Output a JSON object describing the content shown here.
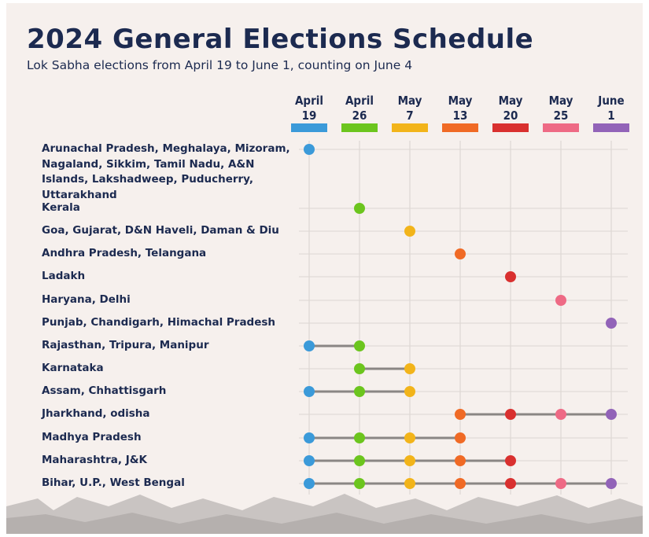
{
  "header": {
    "title": "2024 General Elections Schedule",
    "subtitle": "Lok Sabha elections from April 19 to June 1, counting on June 4"
  },
  "phases": [
    {
      "month": "April",
      "day": "19",
      "color": "#3b9ad9"
    },
    {
      "month": "April",
      "day": "26",
      "color": "#6cc51e"
    },
    {
      "month": "May",
      "day": "7",
      "color": "#f2b41a"
    },
    {
      "month": "May",
      "day": "13",
      "color": "#f06a25"
    },
    {
      "month": "May",
      "day": "20",
      "color": "#d9302f"
    },
    {
      "month": "May",
      "day": "25",
      "color": "#ee6a85"
    },
    {
      "month": "June",
      "day": "1",
      "color": "#9263b8"
    }
  ],
  "rows": [
    {
      "label": "Arunachal Pradesh, Meghalaya, Mizoram, Nagaland, Sikkim, Tamil Nadu, A&N Islands, Lakshadweep, Puducherry, Uttarakhand",
      "dates": [
        true,
        false,
        false,
        false,
        false,
        false,
        false
      ]
    },
    {
      "label": "Kerala",
      "dates": [
        false,
        true,
        false,
        false,
        false,
        false,
        false
      ]
    },
    {
      "label": "Goa, Gujarat, D&N Haveli, Daman & Diu",
      "dates": [
        false,
        false,
        true,
        false,
        false,
        false,
        false
      ]
    },
    {
      "label": "Andhra Pradesh, Telangana",
      "dates": [
        false,
        false,
        false,
        true,
        false,
        false,
        false
      ]
    },
    {
      "label": "Ladakh",
      "dates": [
        false,
        false,
        false,
        false,
        true,
        false,
        false
      ]
    },
    {
      "label": "Haryana, Delhi",
      "dates": [
        false,
        false,
        false,
        false,
        false,
        true,
        false
      ]
    },
    {
      "label": "Punjab, Chandigarh, Himachal Pradesh",
      "dates": [
        false,
        false,
        false,
        false,
        false,
        false,
        true
      ]
    },
    {
      "label": "Rajasthan, Tripura, Manipur",
      "dates": [
        true,
        true,
        false,
        false,
        false,
        false,
        false
      ]
    },
    {
      "label": "Karnataka",
      "dates": [
        false,
        true,
        true,
        false,
        false,
        false,
        false
      ]
    },
    {
      "label": "Assam, Chhattisgarh",
      "dates": [
        true,
        true,
        true,
        false,
        false,
        false,
        false
      ]
    },
    {
      "label": "Jharkhand, odisha",
      "dates": [
        false,
        false,
        false,
        true,
        true,
        true,
        true
      ]
    },
    {
      "label": "Madhya Pradesh",
      "dates": [
        true,
        true,
        true,
        true,
        false,
        false,
        false
      ]
    },
    {
      "label": "Maharashtra, J&K",
      "dates": [
        true,
        true,
        true,
        true,
        true,
        false,
        false
      ]
    },
    {
      "label": "Bihar, U.P., West Bengal",
      "dates": [
        true,
        true,
        true,
        true,
        true,
        true,
        true
      ]
    }
  ]
}
